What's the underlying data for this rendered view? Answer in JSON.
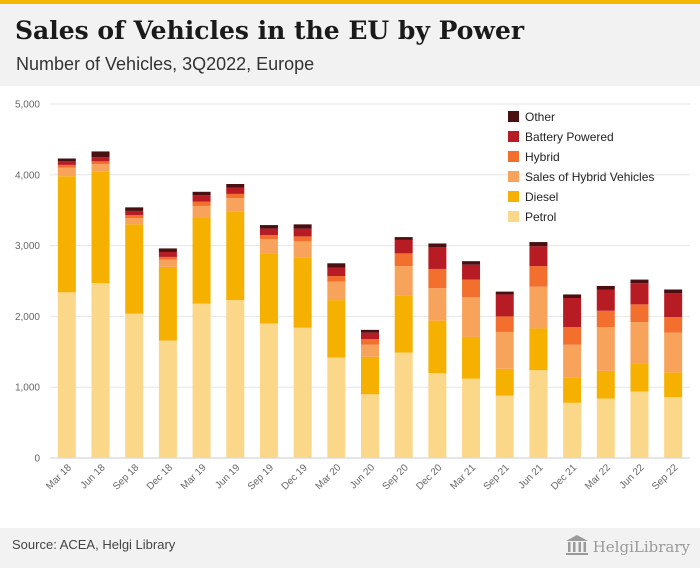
{
  "header": {
    "title": "Sales of Vehicles in the EU by Power",
    "subtitle": "Number of Vehicles, 3Q2022, Europe"
  },
  "footer": {
    "source": "Source: ACEA, Helgi Library",
    "brand": "HelgiLibrary"
  },
  "icons": {
    "brand_logo": "library-building-icon"
  },
  "chart_data": {
    "type": "bar",
    "stacked": true,
    "title": "Sales of Vehicles in the EU by Power",
    "subtitle": "Number of Vehicles, 3Q2022, Europe",
    "xlabel": "",
    "ylabel": "",
    "ylim": [
      0,
      5000
    ],
    "yticks": [
      0,
      1000,
      2000,
      3000,
      4000,
      5000
    ],
    "ytick_labels": [
      "0",
      "1,000",
      "2,000",
      "3,000",
      "4,000",
      "5,000"
    ],
    "grid": true,
    "legend_position": "top-right",
    "categories": [
      "Mar 18",
      "Jun 18",
      "Sep 18",
      "Dec 18",
      "Mar 19",
      "Jun 19",
      "Sep 19",
      "Dec 19",
      "Mar 20",
      "Jun 20",
      "Sep 20",
      "Dec 20",
      "Mar 21",
      "Sep 21",
      "Jun 21",
      "Dec 21",
      "Mar 22",
      "Jun 22",
      "Sep 22"
    ],
    "series": [
      {
        "name": "Petrol",
        "color": "#fbd78a",
        "values": [
          2340,
          2470,
          2040,
          1660,
          2180,
          2230,
          1900,
          1840,
          1420,
          900,
          1490,
          1200,
          1120,
          880,
          1240,
          780,
          840,
          940,
          860
        ]
      },
      {
        "name": "Diesel",
        "color": "#f5b000",
        "values": [
          1640,
          1580,
          1260,
          1040,
          1210,
          1250,
          990,
          990,
          810,
          530,
          810,
          740,
          590,
          380,
          590,
          360,
          390,
          400,
          350
        ]
      },
      {
        "name": "Sales of Hybrid Vehicles",
        "color": "#f8a35c",
        "values": [
          120,
          100,
          90,
          100,
          170,
          190,
          200,
          230,
          260,
          170,
          410,
          460,
          560,
          520,
          590,
          460,
          620,
          580,
          560
        ]
      },
      {
        "name": "Hybrid",
        "color": "#f26f2e",
        "values": [
          40,
          40,
          40,
          40,
          60,
          60,
          60,
          70,
          80,
          80,
          180,
          270,
          250,
          220,
          290,
          250,
          230,
          250,
          220
        ]
      },
      {
        "name": "Battery Powered",
        "color": "#b71c25",
        "values": [
          50,
          60,
          60,
          70,
          90,
          90,
          90,
          110,
          120,
          90,
          190,
          310,
          210,
          310,
          280,
          410,
          300,
          300,
          340
        ]
      },
      {
        "name": "Other",
        "color": "#4a0f10",
        "values": [
          40,
          80,
          50,
          50,
          50,
          50,
          50,
          60,
          60,
          40,
          40,
          50,
          50,
          40,
          60,
          50,
          50,
          50,
          50
        ]
      }
    ]
  }
}
